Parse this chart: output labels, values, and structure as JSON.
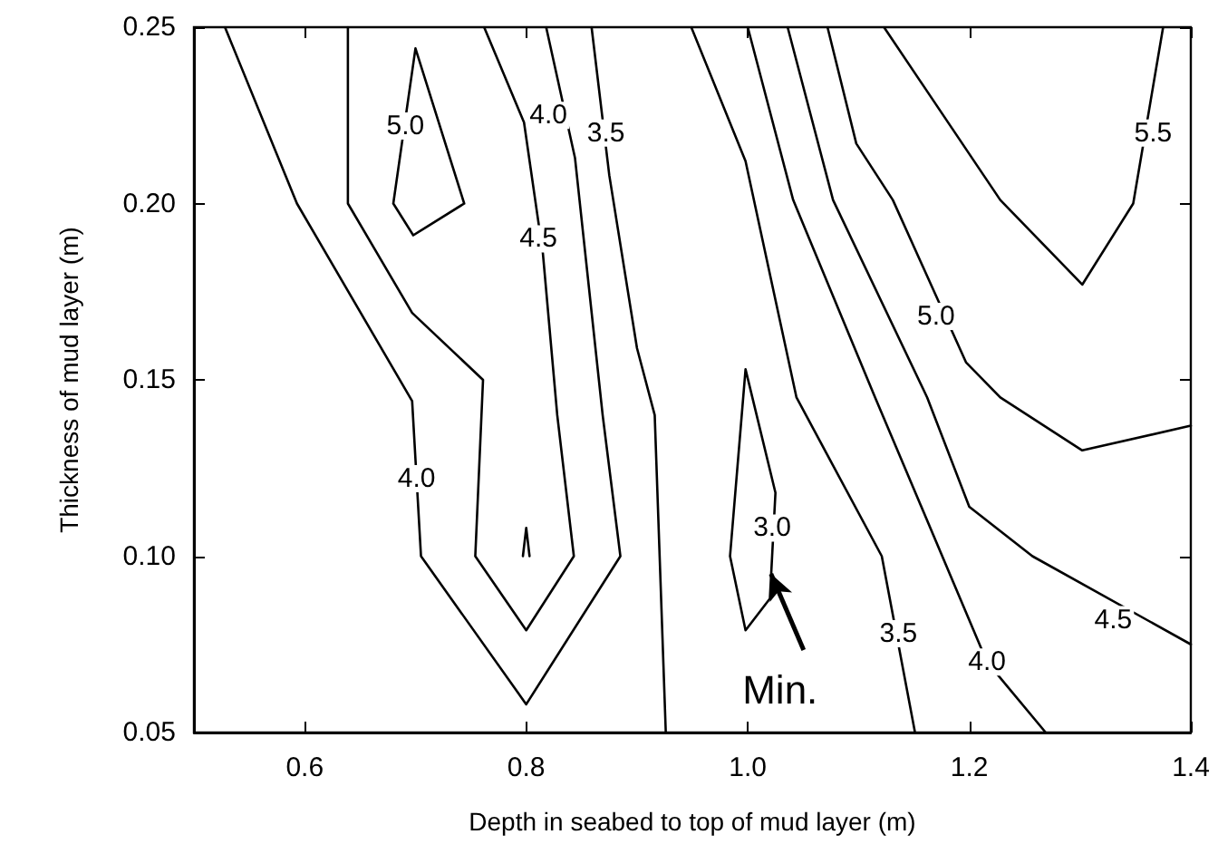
{
  "chart_data": {
    "type": "line",
    "xlabel": "Depth in seabed to top of mud layer (m)",
    "ylabel": "Thickness of mud layer (m)",
    "xlim": [
      0.5,
      1.4
    ],
    "xticks": [
      {
        "value": 0.6,
        "label": "0.6"
      },
      {
        "value": 0.8,
        "label": "0.8"
      },
      {
        "value": 1.0,
        "label": "1.0"
      },
      {
        "value": 1.2,
        "label": "1.2"
      },
      {
        "value": 1.4,
        "label": "1.4"
      }
    ],
    "ylim": [
      0.05,
      0.25
    ],
    "yticks": [
      {
        "value": 0.05,
        "label": "0.05"
      },
      {
        "value": 0.1,
        "label": "0.10"
      },
      {
        "value": 0.15,
        "label": "0.15"
      },
      {
        "value": 0.2,
        "label": "0.20"
      },
      {
        "value": 0.25,
        "label": "0.25"
      }
    ],
    "grid": false,
    "marker": "none",
    "line_style": "solid",
    "series": [
      {
        "color": "#000000",
        "x": [
          0.528,
          0.593,
          0.697,
          0.705,
          0.8,
          0.885,
          0.869,
          0.844,
          0.818
        ],
        "values": [
          0.25,
          0.2,
          0.144,
          0.1,
          0.058,
          0.1,
          0.14,
          0.213,
          0.25
        ]
      },
      {
        "color": "#000000",
        "x": [
          0.639,
          0.639,
          0.697,
          0.761,
          0.754,
          0.8,
          0.843,
          0.828,
          0.815,
          0.798,
          0.762
        ],
        "values": [
          0.25,
          0.2,
          0.169,
          0.15,
          0.1,
          0.079,
          0.1,
          0.14,
          0.186,
          0.223,
          0.25
        ]
      },
      {
        "color": "#000000",
        "x": [
          0.68,
          0.7,
          0.744,
          null,
          0.68,
          0.698,
          0.744
        ],
        "values": [
          0.2,
          0.244,
          0.2,
          null,
          0.2,
          0.191,
          0.2
        ]
      },
      {
        "color": "#000000",
        "x": [
          0.797,
          0.8,
          0.803
        ],
        "values": [
          0.1,
          0.108,
          0.1
        ]
      },
      {
        "color": "#000000",
        "x": [
          0.859,
          0.875,
          0.9,
          0.916,
          0.926
        ],
        "values": [
          0.25,
          0.208,
          0.159,
          0.14,
          0.05
        ]
      },
      {
        "color": "#000000",
        "x": [
          0.984,
          0.998,
          1.025,
          null,
          0.984,
          0.998,
          1.02,
          1.025
        ],
        "values": [
          0.1,
          0.153,
          0.118,
          null,
          0.1,
          0.079,
          0.088,
          0.118
        ]
      },
      {
        "color": "#000000",
        "x": [
          0.949,
          0.998,
          1.044,
          1.121,
          1.151
        ],
        "values": [
          0.25,
          0.212,
          0.145,
          0.1,
          0.05
        ]
      },
      {
        "color": "#000000",
        "x": [
          1.0,
          1.041,
          1.115,
          1.216,
          1.269
        ],
        "values": [
          0.25,
          0.201,
          0.145,
          0.07,
          0.05
        ]
      },
      {
        "color": "#000000",
        "x": [
          1.036,
          1.077,
          1.162,
          1.2,
          1.257,
          1.4
        ],
        "values": [
          0.25,
          0.201,
          0.145,
          0.114,
          0.1,
          0.075
        ]
      },
      {
        "color": "#000000",
        "x": [
          1.072,
          1.098,
          1.131,
          1.197,
          1.228,
          1.302,
          1.4
        ],
        "values": [
          0.25,
          0.217,
          0.201,
          0.155,
          0.145,
          0.13,
          0.137
        ]
      },
      {
        "color": "#000000",
        "x": [
          1.123,
          1.228,
          1.302,
          1.348,
          1.375
        ],
        "values": [
          0.25,
          0.201,
          0.177,
          0.2,
          0.25
        ]
      }
    ],
    "annotations": [
      {
        "text": "5.0",
        "x": 0.691,
        "y": 0.222
      },
      {
        "text": "4.0",
        "x": 0.82,
        "y": 0.225
      },
      {
        "text": "3.5",
        "x": 0.872,
        "y": 0.22
      },
      {
        "text": "4.5",
        "x": 0.811,
        "y": 0.19
      },
      {
        "text": "4.0",
        "x": 0.701,
        "y": 0.122
      },
      {
        "text": "5.5",
        "x": 1.366,
        "y": 0.22
      },
      {
        "text": "5.0",
        "x": 1.17,
        "y": 0.168
      },
      {
        "text": "3.0",
        "x": 1.022,
        "y": 0.108
      },
      {
        "text": "3.5",
        "x": 1.136,
        "y": 0.078
      },
      {
        "text": "4.0",
        "x": 1.216,
        "y": 0.07
      },
      {
        "text": "4.5",
        "x": 1.33,
        "y": 0.082
      },
      {
        "text": "Min.",
        "x": 1.021,
        "y": 0.095
      }
    ]
  }
}
